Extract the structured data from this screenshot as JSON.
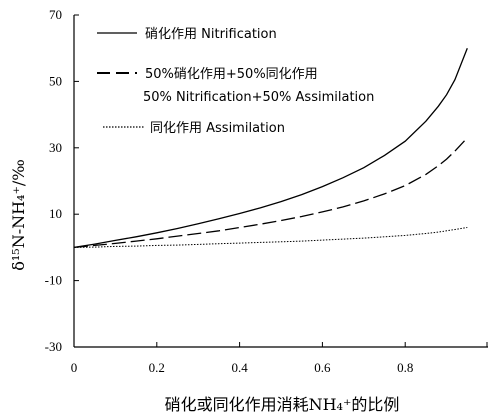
{
  "chart_data": {
    "type": "line",
    "title": "",
    "xlabel": "硝化或同化作用消耗NH₄⁺的比例",
    "ylabel": "δ¹⁵N-NH₄⁺/‰",
    "xlim": [
      0,
      1.0
    ],
    "ylim": [
      -30,
      70
    ],
    "x_ticks": [
      "0",
      "0.2",
      "0.4",
      "0.6",
      "0.8"
    ],
    "y_ticks": [
      "-30",
      "-10",
      "10",
      "30",
      "50",
      "70"
    ],
    "x": [
      0,
      0.05,
      0.1,
      0.15,
      0.2,
      0.25,
      0.3,
      0.35,
      0.4,
      0.45,
      0.5,
      0.55,
      0.6,
      0.65,
      0.7,
      0.75,
      0.8,
      0.85,
      0.88,
      0.9,
      0.92,
      0.95
    ],
    "series": [
      {
        "name": "硝化作用 Nitrification",
        "style": "solid",
        "values": [
          0,
          1.0,
          2.1,
          3.2,
          4.4,
          5.7,
          7.1,
          8.6,
          10.2,
          11.9,
          13.8,
          15.9,
          18.3,
          21.0,
          24.0,
          27.7,
          32.0,
          38.0,
          42.5,
          46.0,
          50.5,
          60.0
        ]
      },
      {
        "name": "50%硝化作用+50%同化作用 50% Nitrification+50% Assimilation",
        "style": "dashed",
        "values": [
          0,
          0.6,
          1.2,
          1.9,
          2.6,
          3.4,
          4.2,
          5.0,
          6.0,
          7.0,
          8.1,
          9.3,
          10.7,
          12.2,
          14.0,
          16.1,
          18.6,
          22.0,
          24.6,
          26.6,
          29.0,
          33.0
        ]
      },
      {
        "name": "同化作用 Assimilation",
        "style": "dotted",
        "values": [
          0,
          0.1,
          0.3,
          0.4,
          0.6,
          0.7,
          0.9,
          1.1,
          1.3,
          1.5,
          1.7,
          1.9,
          2.2,
          2.5,
          2.8,
          3.2,
          3.6,
          4.2,
          4.6,
          5.0,
          5.4,
          6.0
        ]
      }
    ],
    "legend": [
      {
        "style": "solid",
        "line1": "硝化作用  Nitrification",
        "line2": ""
      },
      {
        "style": "dashed",
        "line1": "50%硝化作用+50%同化作用",
        "line2": "50% Nitrification+50% Assimilation"
      },
      {
        "style": "dotted",
        "line1": "同化作用  Assimilation",
        "line2": ""
      }
    ],
    "legend_position": "top-left",
    "grid": false
  }
}
